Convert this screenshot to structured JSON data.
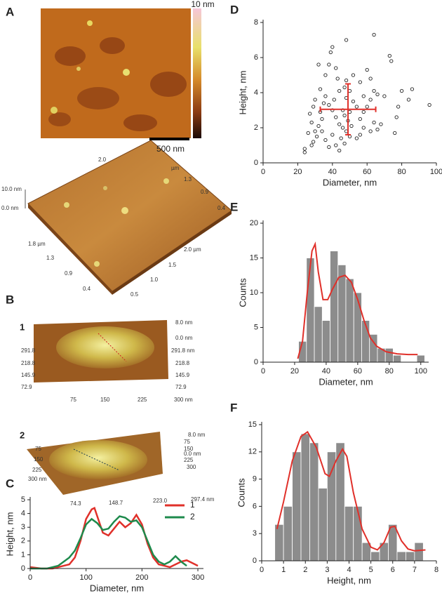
{
  "panel_labels": [
    "A",
    "B",
    "C",
    "D",
    "E",
    "F"
  ],
  "image_a": {
    "colorbar_label": "10 nm",
    "scale_bar": "500 nm",
    "surface_labels": [
      "10.0 nm",
      "0.0 nm",
      "2.0",
      "µm",
      "1.3",
      "0.9",
      "0.4",
      "1.8 µm",
      "1.3",
      "0.9",
      "0.4",
      "2.0 µm",
      "1.5",
      "1.0",
      "0.5"
    ]
  },
  "image_b": {
    "views": [
      {
        "label": "1",
        "labels": [
          "8.0 nm",
          "0.0 nm",
          "291.8 nm",
          "218.8",
          "145.9",
          "72.9",
          "291.8",
          "218.8",
          "145.9",
          "72.9",
          "75",
          "150",
          "225",
          "300 nm"
        ]
      },
      {
        "label": "2",
        "labels": [
          "75",
          "150",
          "225",
          "300 nm",
          "74.3",
          "148.7",
          "223.0",
          "297.4 nm",
          "8.0 nm",
          "0.0 nm",
          "75",
          "150",
          "225",
          "300"
        ]
      }
    ]
  },
  "chart_data": [
    {
      "type": "line",
      "xlabel": "Diameter, nm",
      "ylabel": "Height, nm",
      "xlim": [
        0,
        310
      ],
      "ylim": [
        0,
        5
      ],
      "xticks": [
        0,
        100,
        200,
        300
      ],
      "yticks": [
        0,
        1,
        2,
        3,
        4,
        5
      ],
      "legend": "upper right",
      "series": [
        {
          "name": "1",
          "color": "#e0302a",
          "x": [
            0,
            10,
            20,
            30,
            40,
            50,
            60,
            70,
            80,
            90,
            100,
            110,
            115,
            120,
            130,
            140,
            150,
            160,
            170,
            180,
            190,
            200,
            210,
            220,
            230,
            240,
            250,
            260,
            270,
            280,
            290,
            300
          ],
          "values": [
            0.1,
            0.05,
            0,
            0,
            0,
            0.1,
            0.2,
            0.3,
            0.8,
            2.0,
            3.6,
            4.3,
            4.4,
            3.8,
            2.6,
            2.4,
            2.9,
            3.4,
            3.0,
            3.3,
            3.9,
            3.2,
            1.8,
            0.8,
            0.3,
            0.2,
            0.1,
            0.3,
            0.5,
            0.6,
            0.4,
            0.2
          ]
        },
        {
          "name": "2",
          "color": "#1e8a4c",
          "x": [
            0,
            10,
            20,
            30,
            40,
            50,
            60,
            70,
            80,
            90,
            100,
            110,
            120,
            130,
            140,
            150,
            160,
            170,
            180,
            190,
            200,
            210,
            220,
            230,
            240,
            250,
            260,
            270,
            280
          ],
          "values": [
            0,
            0,
            0,
            0,
            0.1,
            0.2,
            0.5,
            0.8,
            1.3,
            2.2,
            3.2,
            3.6,
            3.3,
            2.8,
            2.9,
            3.4,
            3.8,
            3.7,
            3.4,
            3.5,
            3.0,
            2.0,
            1.0,
            0.5,
            0.3,
            0.5,
            0.9,
            0.5,
            0.2
          ]
        }
      ]
    },
    {
      "type": "scatter",
      "xlabel": "Diameter, nm",
      "ylabel": "Height, nm",
      "xlim": [
        0,
        100
      ],
      "ylim": [
        0,
        8
      ],
      "xticks": [
        0,
        20,
        40,
        60,
        80,
        100
      ],
      "yticks": [
        0,
        2,
        4,
        6,
        8
      ],
      "color": "#222222",
      "x": [
        96,
        86,
        84,
        80,
        78,
        77,
        76,
        73,
        74,
        64,
        60,
        56,
        62,
        64,
        66,
        62,
        60,
        58,
        56,
        58,
        62,
        64,
        66,
        52,
        48,
        48,
        47,
        50,
        48,
        52,
        54,
        50,
        47,
        49,
        51,
        48,
        45,
        47,
        50,
        44,
        42,
        40,
        38,
        36,
        35,
        33,
        34,
        32,
        30,
        31,
        29,
        28,
        27,
        29,
        30,
        33,
        36,
        38,
        39,
        40,
        42,
        43,
        44,
        40,
        42,
        38,
        24,
        24,
        26,
        28,
        34,
        36,
        44,
        46,
        46,
        54,
        56,
        68,
        70,
        58,
        32,
        41
      ],
      "values": [
        3.3,
        4.2,
        3.6,
        4.1,
        3.2,
        2.6,
        1.7,
        6.1,
        5.8,
        7.3,
        5.3,
        4.6,
        4.8,
        4.1,
        3.9,
        3.6,
        3.2,
        2.9,
        2.5,
        2.0,
        1.8,
        2.3,
        1.9,
        5.0,
        7.0,
        4.7,
        4.3,
        4.1,
        3.7,
        3.5,
        3.2,
        2.9,
        2.7,
        2.4,
        2.1,
        1.8,
        1.4,
        1.1,
        1.5,
        2.2,
        2.6,
        3.0,
        3.3,
        3.8,
        3.4,
        2.9,
        2.5,
        2.1,
        1.8,
        1.5,
        1.2,
        1.0,
        2.8,
        3.2,
        3.6,
        4.2,
        5.0,
        5.6,
        6.3,
        6.6,
        5.4,
        4.8,
        4.1,
        1.6,
        1.0,
        0.9,
        0.8,
        0.6,
        1.7,
        2.3,
        1.8,
        1.3,
        0.7,
        2.0,
        3.0,
        1.4,
        1.6,
        2.2,
        3.8,
        3.8,
        5.6,
        3.6
      ],
      "error_cross": {
        "x": 49,
        "y": 3.05,
        "x_err": 16,
        "y_err": 1.45,
        "color": "#e0302a"
      }
    },
    {
      "type": "histogram",
      "xlabel": "Diameter, nm",
      "ylabel": "Counts",
      "xlim": [
        0,
        105
      ],
      "ylim": [
        0,
        20
      ],
      "xticks": [
        0,
        20,
        40,
        60,
        80,
        100
      ],
      "yticks": [
        0,
        5,
        10,
        15,
        20
      ],
      "color": "#8c8c8c",
      "bins": [
        22.5,
        27.5,
        32.5,
        37.5,
        42.5,
        47.5,
        52.5,
        57.5,
        62.5,
        67.5,
        72.5,
        77.5,
        82.5,
        87.5,
        92.5,
        97.5,
        102.5
      ],
      "values": [
        3,
        15,
        8,
        6,
        16,
        14,
        12,
        10,
        6,
        4,
        2,
        2,
        1,
        0,
        0,
        1
      ],
      "fit": {
        "color": "#e0302a",
        "x": [
          22,
          25,
          28,
          31,
          33,
          35,
          38,
          41,
          44,
          48,
          52,
          56,
          60,
          64,
          68,
          72,
          78,
          85,
          92,
          98
        ],
        "values": [
          0.5,
          3,
          10,
          16,
          17,
          13,
          9,
          9,
          10.5,
          12.2,
          12.5,
          11.5,
          9,
          6,
          3.5,
          2.3,
          1.5,
          1.2,
          1.1,
          1.1
        ]
      }
    },
    {
      "type": "histogram",
      "xlabel": "Height, nm",
      "ylabel": "Counts",
      "xlim": [
        0,
        8
      ],
      "ylim": [
        0,
        15
      ],
      "xticks": [
        0,
        1,
        2,
        3,
        4,
        5,
        6,
        7,
        8
      ],
      "yticks": [
        0,
        3,
        6,
        9,
        12,
        15
      ],
      "color": "#8c8c8c",
      "bins": [
        0.6,
        1.0,
        1.4,
        1.8,
        2.2,
        2.6,
        3.0,
        3.4,
        3.8,
        4.2,
        4.6,
        5.0,
        5.4,
        5.8,
        6.2,
        6.6,
        7.0,
        7.4
      ],
      "values": [
        4,
        6,
        12,
        14,
        13,
        8,
        12,
        13,
        6,
        6,
        2,
        1,
        2,
        4,
        1,
        1,
        2
      ],
      "fit": {
        "color": "#e0302a",
        "x": [
          0.7,
          1.0,
          1.4,
          1.8,
          2.1,
          2.5,
          2.9,
          3.1,
          3.4,
          3.7,
          3.9,
          4.2,
          4.6,
          5.0,
          5.3,
          5.6,
          5.9,
          6.1,
          6.4,
          6.7,
          7.0,
          7.5
        ],
        "values": [
          3.5,
          6.5,
          11,
          13.7,
          14.2,
          12.5,
          9.6,
          9.3,
          11,
          12.3,
          11.5,
          7.5,
          3.5,
          1.5,
          1.2,
          2,
          3.7,
          3.8,
          2.2,
          1.3,
          1.1,
          1.2
        ]
      }
    }
  ]
}
